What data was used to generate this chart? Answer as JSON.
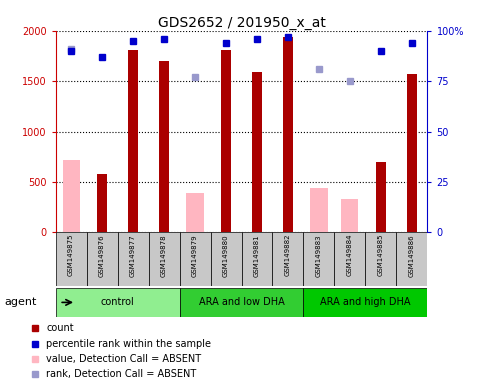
{
  "title": "GDS2652 / 201950_x_at",
  "samples": [
    "GSM149875",
    "GSM149876",
    "GSM149877",
    "GSM149878",
    "GSM149879",
    "GSM149880",
    "GSM149881",
    "GSM149882",
    "GSM149883",
    "GSM149884",
    "GSM149885",
    "GSM149886"
  ],
  "groups": [
    {
      "label": "control",
      "start": 0,
      "end": 3,
      "color": "#90ee90"
    },
    {
      "label": "ARA and low DHA",
      "start": 4,
      "end": 7,
      "color": "#32cd32"
    },
    {
      "label": "ARA and high DHA",
      "start": 8,
      "end": 11,
      "color": "#00c800"
    }
  ],
  "count_values": [
    null,
    580,
    1810,
    1700,
    null,
    1810,
    1590,
    1940,
    null,
    null,
    700,
    1570
  ],
  "absent_value": [
    720,
    null,
    null,
    null,
    390,
    null,
    null,
    null,
    440,
    330,
    null,
    null
  ],
  "percentile_rank": [
    90,
    87,
    95,
    96,
    null,
    94,
    96,
    97,
    null,
    null,
    90,
    94
  ],
  "absent_rank": [
    91,
    null,
    null,
    null,
    77,
    null,
    null,
    null,
    81,
    75,
    null,
    null
  ],
  "ylim_left": [
    0,
    2000
  ],
  "ylim_right": [
    0,
    100
  ],
  "yticks_left": [
    0,
    500,
    1000,
    1500,
    2000
  ],
  "ytick_labels_left": [
    "0",
    "500",
    "1000",
    "1500",
    "2000"
  ],
  "yticks_right": [
    0,
    25,
    50,
    75,
    100
  ],
  "ytick_labels_right": [
    "0",
    "25",
    "50",
    "75",
    "100%"
  ],
  "bar_color_count": "#aa0000",
  "bar_color_absent": "#ffb6c1",
  "dot_color_rank": "#0000cc",
  "dot_color_absent_rank": "#9999cc",
  "legend_items": [
    {
      "color": "#aa0000",
      "label": "count",
      "marker": "s"
    },
    {
      "color": "#0000cc",
      "label": "percentile rank within the sample",
      "marker": "s"
    },
    {
      "color": "#ffb6c1",
      "label": "value, Detection Call = ABSENT",
      "marker": "s"
    },
    {
      "color": "#9999cc",
      "label": "rank, Detection Call = ABSENT",
      "marker": "s"
    }
  ],
  "agent_label": "agent",
  "background_color": "#ffffff",
  "label_box_color": "#c8c8c8",
  "spine_color_left": "#cc0000",
  "spine_color_right": "#0000cc"
}
